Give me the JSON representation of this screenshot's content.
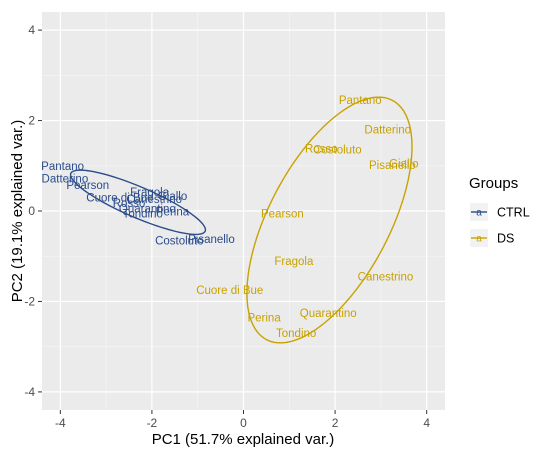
{
  "chart_data": {
    "type": "scatter",
    "title": "",
    "xlabel": "PC1 (51.7% explained var.)",
    "ylabel": "PC2 (19.1% explained var.)",
    "xlim": [
      -4.4,
      4.4
    ],
    "ylim": [
      -4.4,
      4.4
    ],
    "x_ticks": [
      -4,
      -2,
      0,
      2,
      4
    ],
    "y_ticks": [
      -4,
      -2,
      0,
      2,
      4
    ],
    "grid": true,
    "legend_title": "Groups",
    "legend_position": "right",
    "series": [
      {
        "name": "CTRL",
        "color": "#2b4c8c",
        "ellipse": true,
        "points": [
          {
            "label": "Pantano",
            "x": -3.95,
            "y": 1.0
          },
          {
            "label": "Datterino",
            "x": -3.9,
            "y": 0.72
          },
          {
            "label": "Pearson",
            "x": -3.4,
            "y": 0.58
          },
          {
            "label": "Fragola",
            "x": -2.05,
            "y": 0.42
          },
          {
            "label": "Cuore di Bue",
            "x": -2.7,
            "y": 0.3
          },
          {
            "label": "Canestrino",
            "x": -1.95,
            "y": 0.26
          },
          {
            "label": "Giallo",
            "x": -1.55,
            "y": 0.33
          },
          {
            "label": "Rosso",
            "x": -2.5,
            "y": 0.18
          },
          {
            "label": "Quarantino",
            "x": -2.1,
            "y": 0.06
          },
          {
            "label": "Tondino",
            "x": -2.2,
            "y": -0.06
          },
          {
            "label": "Perina",
            "x": -1.55,
            "y": -0.01
          },
          {
            "label": "Pisanello",
            "x": -0.7,
            "y": -0.62
          },
          {
            "label": "Costoluto",
            "x": -1.4,
            "y": -0.65
          }
        ]
      },
      {
        "name": "DS",
        "color": "#c8a200",
        "ellipse": true,
        "points": [
          {
            "label": "Pantano",
            "x": 2.55,
            "y": 2.45
          },
          {
            "label": "Datterino",
            "x": 3.15,
            "y": 1.8
          },
          {
            "label": "Rosso",
            "x": 1.7,
            "y": 1.38
          },
          {
            "label": "Costoluto",
            "x": 2.05,
            "y": 1.36
          },
          {
            "label": "Giallo",
            "x": 3.5,
            "y": 1.05
          },
          {
            "label": "Pisanello",
            "x": 3.25,
            "y": 1.02
          },
          {
            "label": "Pearson",
            "x": 0.85,
            "y": -0.05
          },
          {
            "label": "Fragola",
            "x": 1.1,
            "y": -1.1
          },
          {
            "label": "Canestrino",
            "x": 3.1,
            "y": -1.45
          },
          {
            "label": "Cuore di Bue",
            "x": -0.3,
            "y": -1.75
          },
          {
            "label": "Quarantino",
            "x": 1.85,
            "y": -2.25
          },
          {
            "label": "Perina",
            "x": 0.45,
            "y": -2.35
          },
          {
            "label": "Tondino",
            "x": 1.15,
            "y": -2.7
          }
        ]
      }
    ]
  }
}
